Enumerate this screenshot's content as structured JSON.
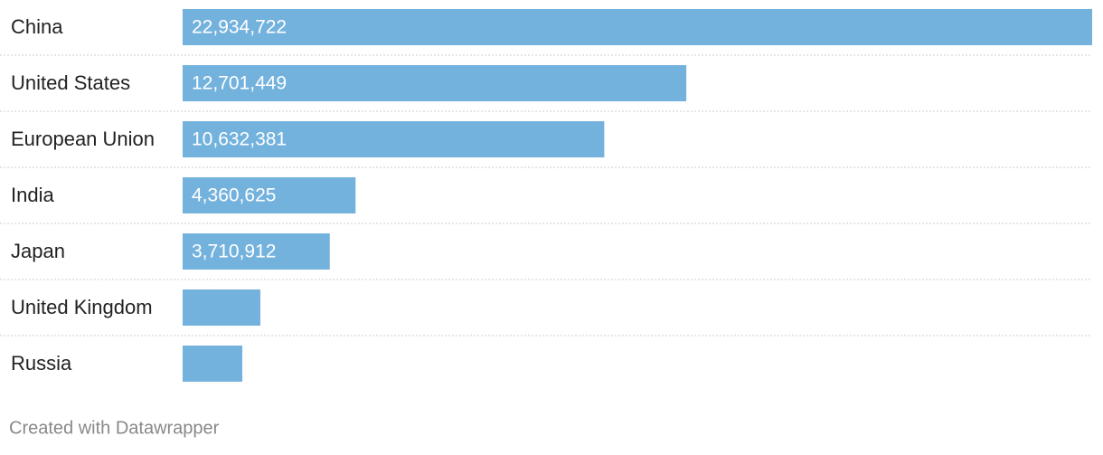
{
  "chart_data": {
    "type": "bar",
    "orientation": "horizontal",
    "categories": [
      "China",
      "United States",
      "European Union",
      "India",
      "Japan",
      "United Kingdom",
      "Russia"
    ],
    "values": [
      22934722,
      12701449,
      10632381,
      4360625,
      3710912,
      1960000,
      1505000
    ],
    "value_labels": [
      "22,934,722",
      "12,701,449",
      "10,632,381",
      "4,360,625",
      "3,710,912",
      null,
      null
    ],
    "color": "#74b2de",
    "xlim": [
      0,
      22934722
    ],
    "credit": "Created with Datawrapper"
  }
}
